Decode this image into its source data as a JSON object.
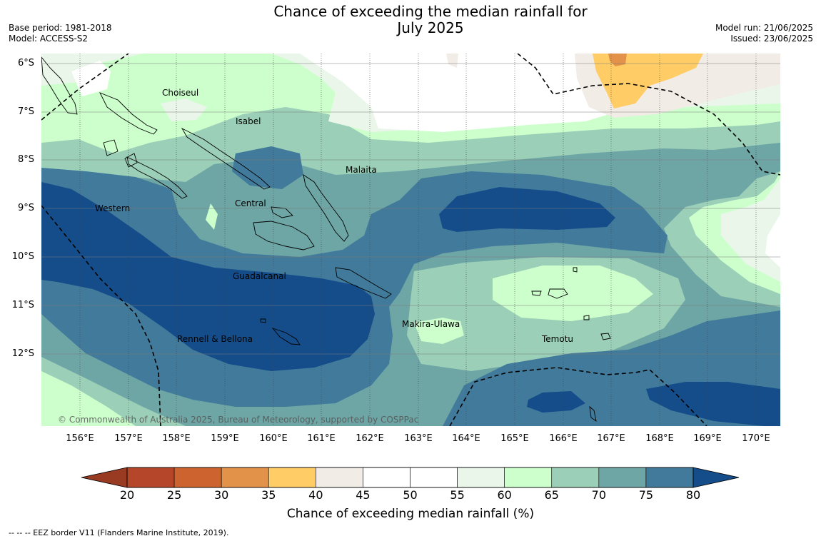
{
  "title": {
    "line1": "Chance of exceeding the median rainfall for",
    "line2": "July 2025"
  },
  "meta_left": {
    "base_period": "Base period: 1981-2018",
    "model": "Model: ACCESS-S2"
  },
  "meta_right": {
    "model_run": "Model run: 21/06/2025",
    "issued": "Issued: 23/06/2025"
  },
  "map": {
    "lat_labels": [
      "6°S",
      "7°S",
      "8°S",
      "9°S",
      "10°S",
      "11°S",
      "12°S"
    ],
    "lon_labels": [
      "156°E",
      "157°E",
      "158°E",
      "159°E",
      "160°E",
      "161°E",
      "162°E",
      "163°E",
      "164°E",
      "165°E",
      "166°E",
      "167°E",
      "168°E",
      "169°E",
      "170°E"
    ],
    "regions": {
      "choiseul": "Choiseul",
      "isabel": "Isabel",
      "malaita": "Malaita",
      "central": "Central",
      "western": "Western",
      "guadalcanal": "Guadalcanal",
      "makira_ulawa": "Makira-Ulawa",
      "temotu": "Temotu",
      "rennell_bellona": "Rennell & Bellona"
    },
    "copyright": "© Commonwealth of Australia 2025, Bureau of Meteorology, supported by COSPPac"
  },
  "colorbar": {
    "title": "Chance of exceeding median rainfall (%)",
    "ticks": [
      "20",
      "25",
      "30",
      "35",
      "40",
      "45",
      "50",
      "55",
      "60",
      "65",
      "70",
      "75",
      "80"
    ],
    "colors": [
      "#b5462a",
      "#cd632f",
      "#e39249",
      "#ffcc66",
      "#f2ece6",
      "#ffffff",
      "#ffffff",
      "#eaf6ea",
      "#ccffcc",
      "#9bcfb7",
      "#6ea5a5",
      "#417a9b",
      "#144d8a"
    ],
    "under_color": "#993a22",
    "over_color": "#144d8a"
  },
  "footnote": "--  --  -- EEZ border V11 (Flanders Marine Institute, 2019)."
}
